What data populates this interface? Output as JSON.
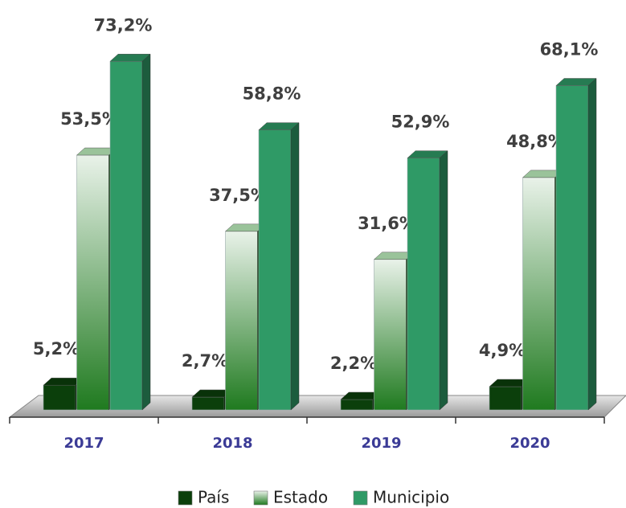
{
  "chart_data": {
    "type": "bar3d",
    "categories": [
      "2017",
      "2018",
      "2019",
      "2020"
    ],
    "ylim": [
      0,
      80
    ],
    "series": [
      {
        "name": "País",
        "color": "#0b3f0b",
        "values": [
          5.2,
          2.7,
          2.2,
          4.9
        ],
        "value_labels": [
          "5,2%",
          "2,7%",
          "2,2%",
          "4,9%"
        ]
      },
      {
        "name": "Estado",
        "color": "#1f7a1f",
        "values": [
          53.5,
          37.5,
          31.6,
          48.8
        ],
        "value_labels": [
          "53,5%",
          "37,5%",
          "31,6%",
          "48,8%"
        ]
      },
      {
        "name": "Municipio",
        "color": "#2f9a66",
        "values": [
          73.2,
          58.8,
          52.9,
          68.1
        ],
        "value_labels": [
          "73,2%",
          "58,8%",
          "52,9%",
          "68,1%"
        ]
      }
    ]
  }
}
